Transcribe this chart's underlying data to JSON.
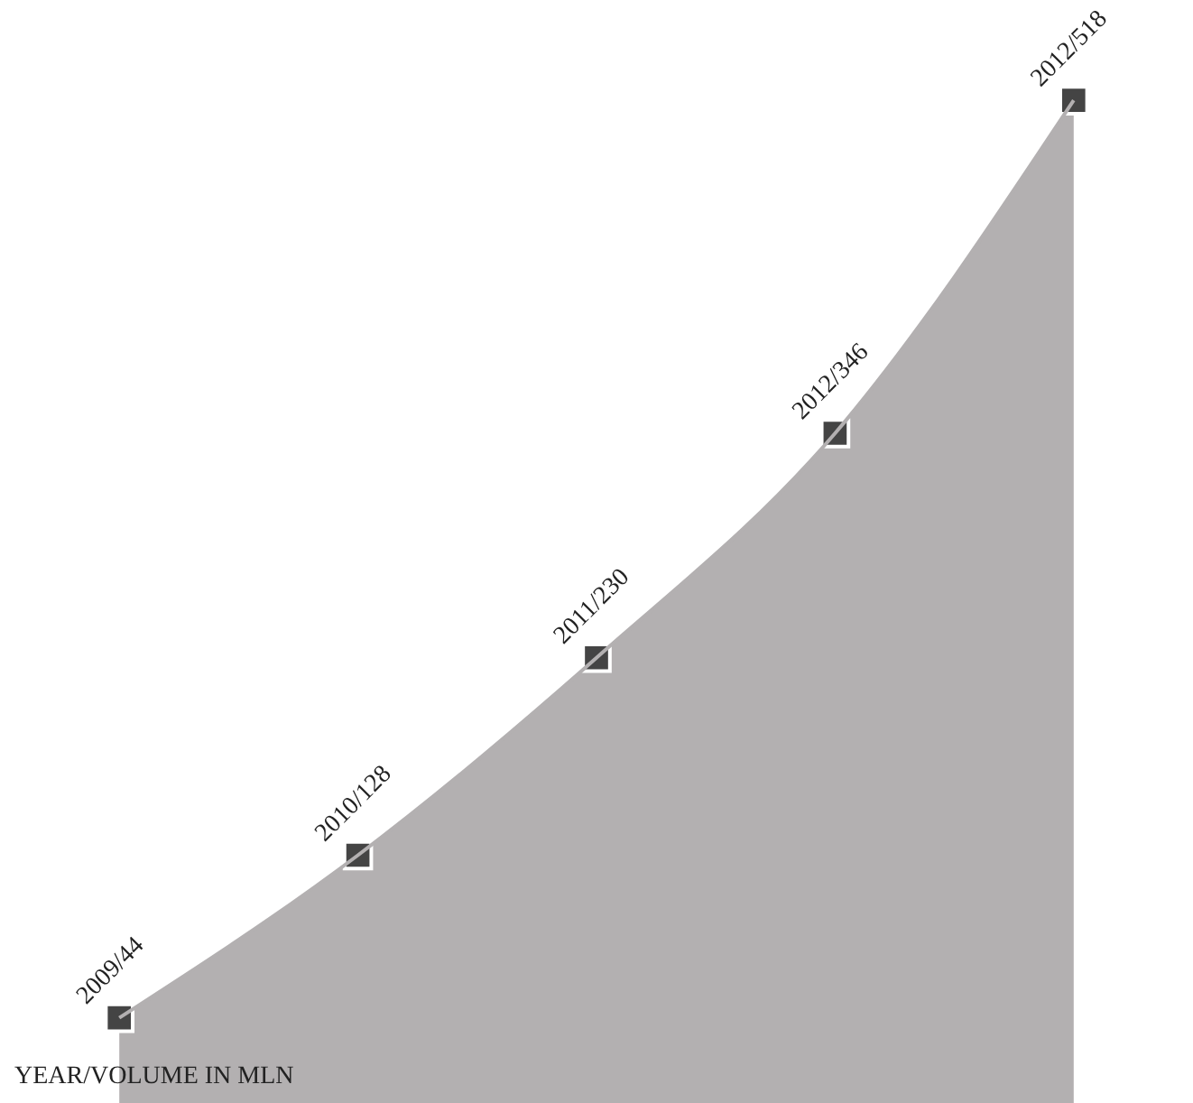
{
  "chart_data": {
    "type": "area",
    "categories": [
      null,
      null,
      null,
      null,
      null
    ],
    "series": [
      {
        "color": "#b3b0b1",
        "values": [
          44,
          128,
          230,
          346,
          518
        ],
        "value_labels": [
          "2009/44",
          "2010/128",
          "2011/230",
          "2012/346",
          "2012/518"
        ]
      }
    ],
    "marker": "square",
    "annotations": [
      "YEAR/VOLUME IN MLN"
    ]
  }
}
